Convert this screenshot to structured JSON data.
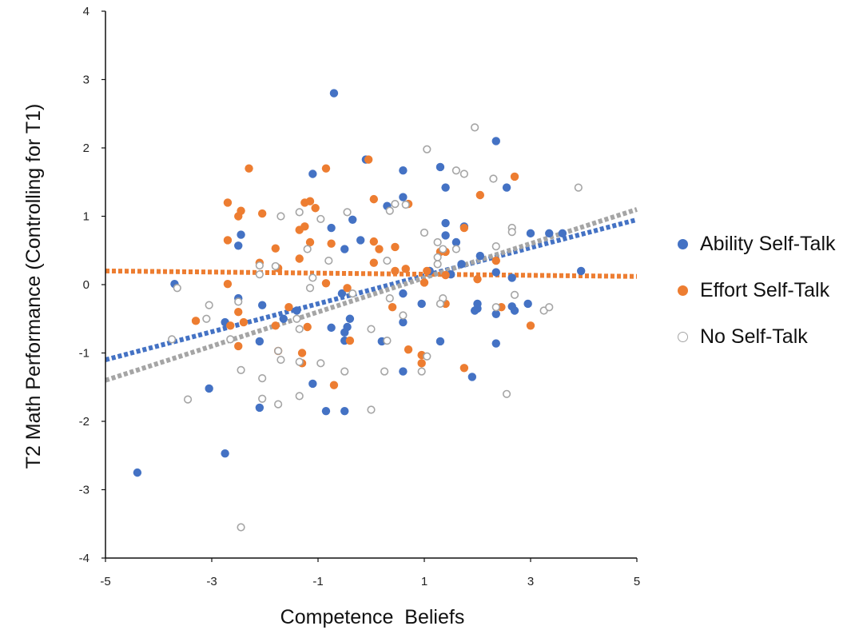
{
  "chart_data": {
    "type": "scatter",
    "title": "",
    "xlabel": "Competence  Beliefs",
    "ylabel": "T2 Math Performance (Controlling for T1)",
    "xlim": [
      -5,
      5
    ],
    "ylim": [
      -4,
      4
    ],
    "xticks": [
      "-5",
      "-3",
      "-1",
      "1",
      "3",
      "5"
    ],
    "yticks": [
      "-4",
      "-3",
      "-2",
      "-1",
      "0",
      "1",
      "2",
      "3",
      "4"
    ],
    "legend_position": "right",
    "series": [
      {
        "name": "Ability Self-Talk",
        "color": "#4472C4",
        "marker": "filled",
        "trendline": {
          "x": [
            -5,
            5
          ],
          "y": [
            -1.1,
            0.95
          ]
        },
        "points": [
          [
            -0.7,
            2.8
          ],
          [
            2.35,
            2.1
          ],
          [
            1.3,
            1.72
          ],
          [
            -0.1,
            1.83
          ],
          [
            0.6,
            1.67
          ],
          [
            -1.1,
            1.62
          ],
          [
            0.6,
            1.28
          ],
          [
            1.4,
            1.42
          ],
          [
            2.55,
            1.42
          ],
          [
            0.3,
            1.15
          ],
          [
            1.4,
            0.9
          ],
          [
            1.75,
            0.85
          ],
          [
            -0.35,
            0.95
          ],
          [
            -2.45,
            0.73
          ],
          [
            -2.5,
            0.57
          ],
          [
            -0.75,
            0.83
          ],
          [
            -0.2,
            0.65
          ],
          [
            -0.5,
            0.52
          ],
          [
            1.6,
            0.62
          ],
          [
            1.4,
            0.72
          ],
          [
            3.0,
            0.75
          ],
          [
            3.35,
            0.75
          ],
          [
            3.6,
            0.75
          ],
          [
            2.05,
            0.42
          ],
          [
            1.1,
            0.2
          ],
          [
            0.6,
            -0.13
          ],
          [
            -0.55,
            -0.13
          ],
          [
            1.7,
            0.3
          ],
          [
            2.35,
            0.18
          ],
          [
            2.65,
            0.1
          ],
          [
            1.5,
            0.15
          ],
          [
            3.95,
            0.2
          ],
          [
            -3.7,
            0.01
          ],
          [
            -2.5,
            -0.2
          ],
          [
            -2.05,
            -0.3
          ],
          [
            -1.4,
            -0.38
          ],
          [
            -0.4,
            -0.5
          ],
          [
            -0.75,
            -0.63
          ],
          [
            -0.45,
            -0.62
          ],
          [
            -0.5,
            -0.7
          ],
          [
            -0.5,
            -0.82
          ],
          [
            0.95,
            -0.28
          ],
          [
            2.0,
            -0.28
          ],
          [
            2.0,
            -0.35
          ],
          [
            1.95,
            -0.38
          ],
          [
            2.35,
            -0.43
          ],
          [
            2.65,
            -0.32
          ],
          [
            2.95,
            -0.28
          ],
          [
            2.7,
            -0.38
          ],
          [
            0.6,
            -0.55
          ],
          [
            0.6,
            -1.27
          ],
          [
            1.3,
            -0.83
          ],
          [
            2.35,
            -0.86
          ],
          [
            -2.1,
            -0.83
          ],
          [
            -2.75,
            -0.55
          ],
          [
            -1.65,
            -0.5
          ],
          [
            -1.1,
            -1.45
          ],
          [
            -0.85,
            -1.85
          ],
          [
            -0.5,
            -1.85
          ],
          [
            -2.1,
            -1.8
          ],
          [
            -3.05,
            -1.52
          ],
          [
            1.9,
            -1.35
          ],
          [
            -2.75,
            -2.47
          ],
          [
            -4.4,
            -2.75
          ],
          [
            0.2,
            -0.83
          ]
        ]
      },
      {
        "name": "Effort Self-Talk",
        "color": "#ED7D31",
        "marker": "filled",
        "trendline": {
          "x": [
            -5,
            5
          ],
          "y": [
            0.2,
            0.12
          ]
        },
        "points": [
          [
            -2.3,
            1.7
          ],
          [
            -0.85,
            1.7
          ],
          [
            -0.05,
            1.83
          ],
          [
            2.7,
            1.58
          ],
          [
            -2.7,
            1.2
          ],
          [
            -1.25,
            1.2
          ],
          [
            -1.15,
            1.22
          ],
          [
            0.05,
            1.25
          ],
          [
            2.05,
            1.31
          ],
          [
            -2.5,
            1.0
          ],
          [
            -2.45,
            1.08
          ],
          [
            -2.05,
            1.04
          ],
          [
            -1.05,
            1.12
          ],
          [
            -1.25,
            0.85
          ],
          [
            -1.35,
            0.8
          ],
          [
            0.7,
            1.18
          ],
          [
            -2.7,
            0.65
          ],
          [
            -1.15,
            0.62
          ],
          [
            -0.75,
            0.6
          ],
          [
            0.05,
            0.63
          ],
          [
            0.15,
            0.52
          ],
          [
            0.45,
            0.55
          ],
          [
            1.75,
            0.83
          ],
          [
            -1.8,
            0.53
          ],
          [
            -2.1,
            0.32
          ],
          [
            -1.75,
            0.24
          ],
          [
            -1.35,
            0.38
          ],
          [
            1.3,
            0.48
          ],
          [
            1.4,
            0.48
          ],
          [
            2.35,
            0.35
          ],
          [
            0.05,
            0.32
          ],
          [
            0.45,
            0.2
          ],
          [
            0.65,
            0.23
          ],
          [
            1.05,
            0.2
          ],
          [
            -2.7,
            0.01
          ],
          [
            -0.85,
            0.02
          ],
          [
            -0.45,
            -0.05
          ],
          [
            1.0,
            0.03
          ],
          [
            1.4,
            0.14
          ],
          [
            2.0,
            0.08
          ],
          [
            -3.3,
            -0.53
          ],
          [
            -2.5,
            -0.4
          ],
          [
            -1.55,
            -0.33
          ],
          [
            -1.8,
            -0.6
          ],
          [
            -1.2,
            -0.62
          ],
          [
            0.4,
            -0.33
          ],
          [
            1.4,
            -0.28
          ],
          [
            2.45,
            -0.33
          ],
          [
            -2.4,
            -0.55
          ],
          [
            -2.65,
            -0.6
          ],
          [
            -1.75,
            -0.97
          ],
          [
            -1.3,
            -1.0
          ],
          [
            -1.3,
            -1.15
          ],
          [
            -2.5,
            -0.9
          ],
          [
            -0.4,
            -0.82
          ],
          [
            0.7,
            -0.95
          ],
          [
            0.95,
            -1.03
          ],
          [
            0.95,
            -1.15
          ],
          [
            1.75,
            -1.22
          ],
          [
            -0.7,
            -1.47
          ],
          [
            3.0,
            -0.6
          ]
        ]
      },
      {
        "name": "No Self-Talk",
        "color": "#A5A5A5",
        "marker": "hollow",
        "trendline": {
          "x": [
            -5,
            5
          ],
          "y": [
            -1.4,
            1.1
          ]
        },
        "points": [
          [
            1.95,
            2.3
          ],
          [
            1.05,
            1.98
          ],
          [
            1.6,
            1.67
          ],
          [
            1.75,
            1.62
          ],
          [
            2.3,
            1.55
          ],
          [
            3.9,
            1.42
          ],
          [
            0.45,
            1.18
          ],
          [
            0.65,
            1.17
          ],
          [
            -1.7,
            1.0
          ],
          [
            -1.35,
            1.06
          ],
          [
            -0.95,
            0.96
          ],
          [
            -0.45,
            1.06
          ],
          [
            0.35,
            1.08
          ],
          [
            2.65,
            0.83
          ],
          [
            2.65,
            0.77
          ],
          [
            1.0,
            0.76
          ],
          [
            1.25,
            0.62
          ],
          [
            2.35,
            0.56
          ],
          [
            -1.2,
            0.52
          ],
          [
            1.35,
            0.52
          ],
          [
            1.6,
            0.52
          ],
          [
            -1.8,
            0.27
          ],
          [
            -2.1,
            0.28
          ],
          [
            -2.1,
            0.15
          ],
          [
            -1.1,
            0.1
          ],
          [
            -0.8,
            0.35
          ],
          [
            0.3,
            0.35
          ],
          [
            1.25,
            0.3
          ],
          [
            1.25,
            0.4
          ],
          [
            -3.65,
            -0.05
          ],
          [
            -1.15,
            -0.05
          ],
          [
            -0.35,
            -0.13
          ],
          [
            0.35,
            -0.2
          ],
          [
            2.7,
            -0.15
          ],
          [
            -3.05,
            -0.3
          ],
          [
            -2.5,
            -0.25
          ],
          [
            -3.1,
            -0.5
          ],
          [
            -1.4,
            -0.5
          ],
          [
            -1.35,
            -0.65
          ],
          [
            0.0,
            -0.65
          ],
          [
            0.3,
            -0.82
          ],
          [
            1.35,
            -0.2
          ],
          [
            3.25,
            -0.38
          ],
          [
            3.35,
            -0.33
          ],
          [
            2.35,
            -0.33
          ],
          [
            1.3,
            -0.28
          ],
          [
            -2.65,
            -0.8
          ],
          [
            -3.75,
            -0.8
          ],
          [
            -1.75,
            -0.97
          ],
          [
            -1.7,
            -1.1
          ],
          [
            -1.35,
            -1.13
          ],
          [
            -0.95,
            -1.15
          ],
          [
            -2.45,
            -1.25
          ],
          [
            -2.05,
            -1.37
          ],
          [
            -0.5,
            -1.27
          ],
          [
            0.25,
            -1.27
          ],
          [
            1.05,
            -1.05
          ],
          [
            0.95,
            -1.27
          ],
          [
            -3.45,
            -1.68
          ],
          [
            -2.05,
            -1.67
          ],
          [
            -1.75,
            -1.75
          ],
          [
            -1.35,
            -1.63
          ],
          [
            0.0,
            -1.83
          ],
          [
            2.55,
            -1.6
          ],
          [
            -2.45,
            -3.55
          ],
          [
            0.6,
            -0.45
          ]
        ]
      }
    ]
  }
}
